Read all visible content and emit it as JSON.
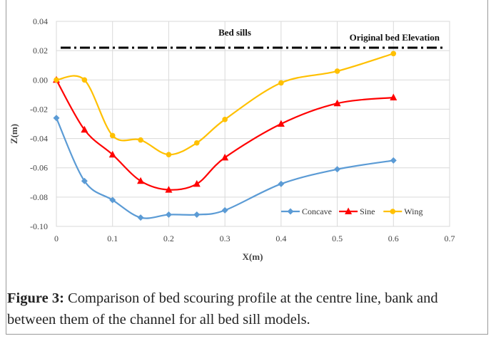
{
  "chart_data": {
    "type": "line",
    "xlabel": "X(m)",
    "ylabel": "Z(m)",
    "xlim": [
      0,
      0.7
    ],
    "ylim": [
      -0.1,
      0.04
    ],
    "xticks": [
      "0",
      "0.1",
      "0.2",
      "0.3",
      "0.4",
      "0.5",
      "0.6",
      "0.7"
    ],
    "yticks": [
      "0.04",
      "0.02",
      "0.00",
      "-0.02",
      "-0.04",
      "-0.06",
      "-0.08",
      "-0.10"
    ],
    "grid": true,
    "legend_position": "bottom-right",
    "annotations": {
      "bed_sills": "Bed sills",
      "original_bed": "Original bed Elevation",
      "original_bed_level": 0.022
    },
    "series": [
      {
        "name": "Concave",
        "color": "#5b9bd5",
        "marker": "diamond",
        "x": [
          0,
          0.05,
          0.1,
          0.15,
          0.2,
          0.25,
          0.3,
          0.4,
          0.5,
          0.6
        ],
        "y": [
          -0.026,
          -0.069,
          -0.082,
          -0.094,
          -0.092,
          -0.092,
          -0.089,
          -0.071,
          -0.061,
          -0.055
        ]
      },
      {
        "name": "Sine",
        "color": "#ff0000",
        "marker": "triangle",
        "x": [
          0,
          0.05,
          0.1,
          0.15,
          0.2,
          0.25,
          0.3,
          0.4,
          0.5,
          0.6
        ],
        "y": [
          0.0,
          -0.034,
          -0.051,
          -0.069,
          -0.075,
          -0.071,
          -0.053,
          -0.03,
          -0.016,
          -0.012
        ]
      },
      {
        "name": "Wing",
        "color": "#ffc000",
        "marker": "circle",
        "x": [
          0,
          0.05,
          0.1,
          0.15,
          0.2,
          0.25,
          0.3,
          0.4,
          0.5,
          0.6
        ],
        "y": [
          0.0,
          0.0,
          -0.038,
          -0.041,
          -0.051,
          -0.043,
          -0.027,
          -0.002,
          0.006,
          0.018
        ]
      }
    ]
  },
  "caption": {
    "label": "Figure 3:",
    "text": " Comparison of bed scouring profile at the centre line, bank and between them of the channel for all bed sill models."
  }
}
